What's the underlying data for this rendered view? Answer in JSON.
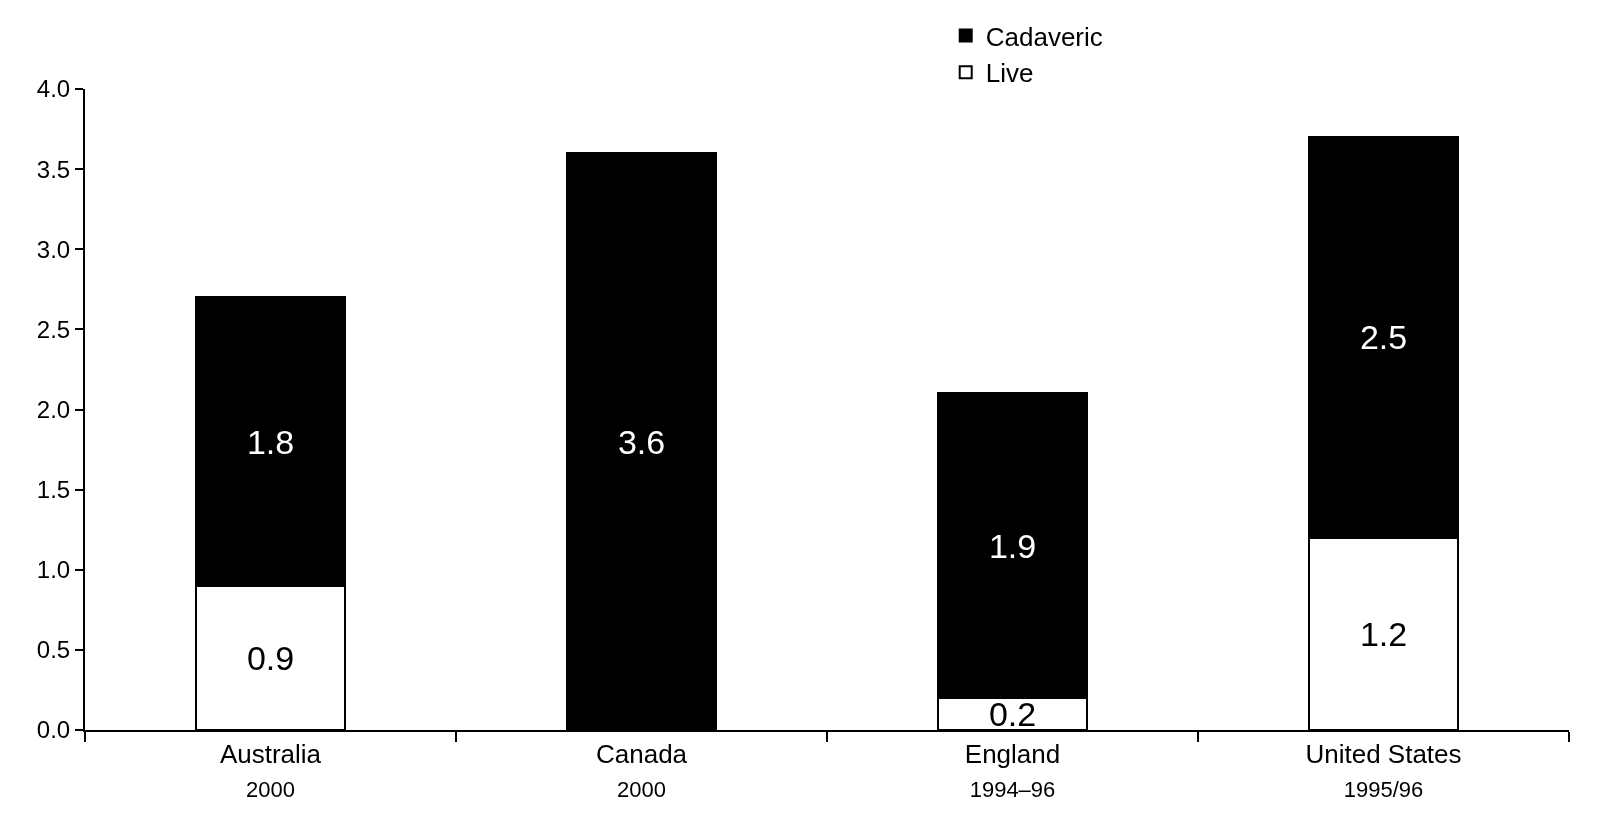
{
  "chart_data": {
    "type": "bar",
    "stacked": true,
    "categories": [
      "Australia\n2000",
      "Canada\n2000",
      "England\n1994–96",
      "United States\n1995/96"
    ],
    "series": [
      {
        "name": "Live",
        "color": "#ffffff",
        "values": [
          0.9,
          null,
          0.2,
          1.2
        ]
      },
      {
        "name": "Cadaveric",
        "color": "#000000",
        "values": [
          1.8,
          3.6,
          1.9,
          2.5
        ]
      }
    ],
    "ylim": [
      0,
      4.0
    ],
    "yticks": [
      {
        "value": 0,
        "label": "0.0"
      },
      {
        "value": 0.5,
        "label": "0.5"
      },
      {
        "value": 1,
        "label": "1.0"
      },
      {
        "value": 1.5,
        "label": "1.5"
      },
      {
        "value": 2,
        "label": "2.0"
      },
      {
        "value": 2.5,
        "label": "2.5"
      },
      {
        "value": 3,
        "label": "3.0"
      },
      {
        "value": 3.5,
        "label": "3.5"
      },
      {
        "value": 4,
        "label": "4.0"
      }
    ],
    "data_labels": true,
    "legend": "top"
  }
}
